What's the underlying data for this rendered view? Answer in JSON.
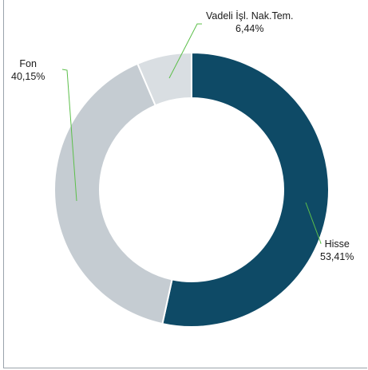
{
  "chart_data": {
    "type": "pie",
    "style": "donut",
    "slices": [
      {
        "label": "Hisse",
        "value": 53.41,
        "value_label": "53,41%",
        "color": "#0e4a66"
      },
      {
        "label": "Fon",
        "value": 40.15,
        "value_label": "40,15%",
        "color": "#c5ccd2"
      },
      {
        "label": "Vadeli İşl. Nak.Tem.",
        "value": 6.44,
        "value_label": "6,44%",
        "color": "#d9dee2"
      }
    ],
    "leader_line_color": "#5cbf4a",
    "legend": "none"
  }
}
